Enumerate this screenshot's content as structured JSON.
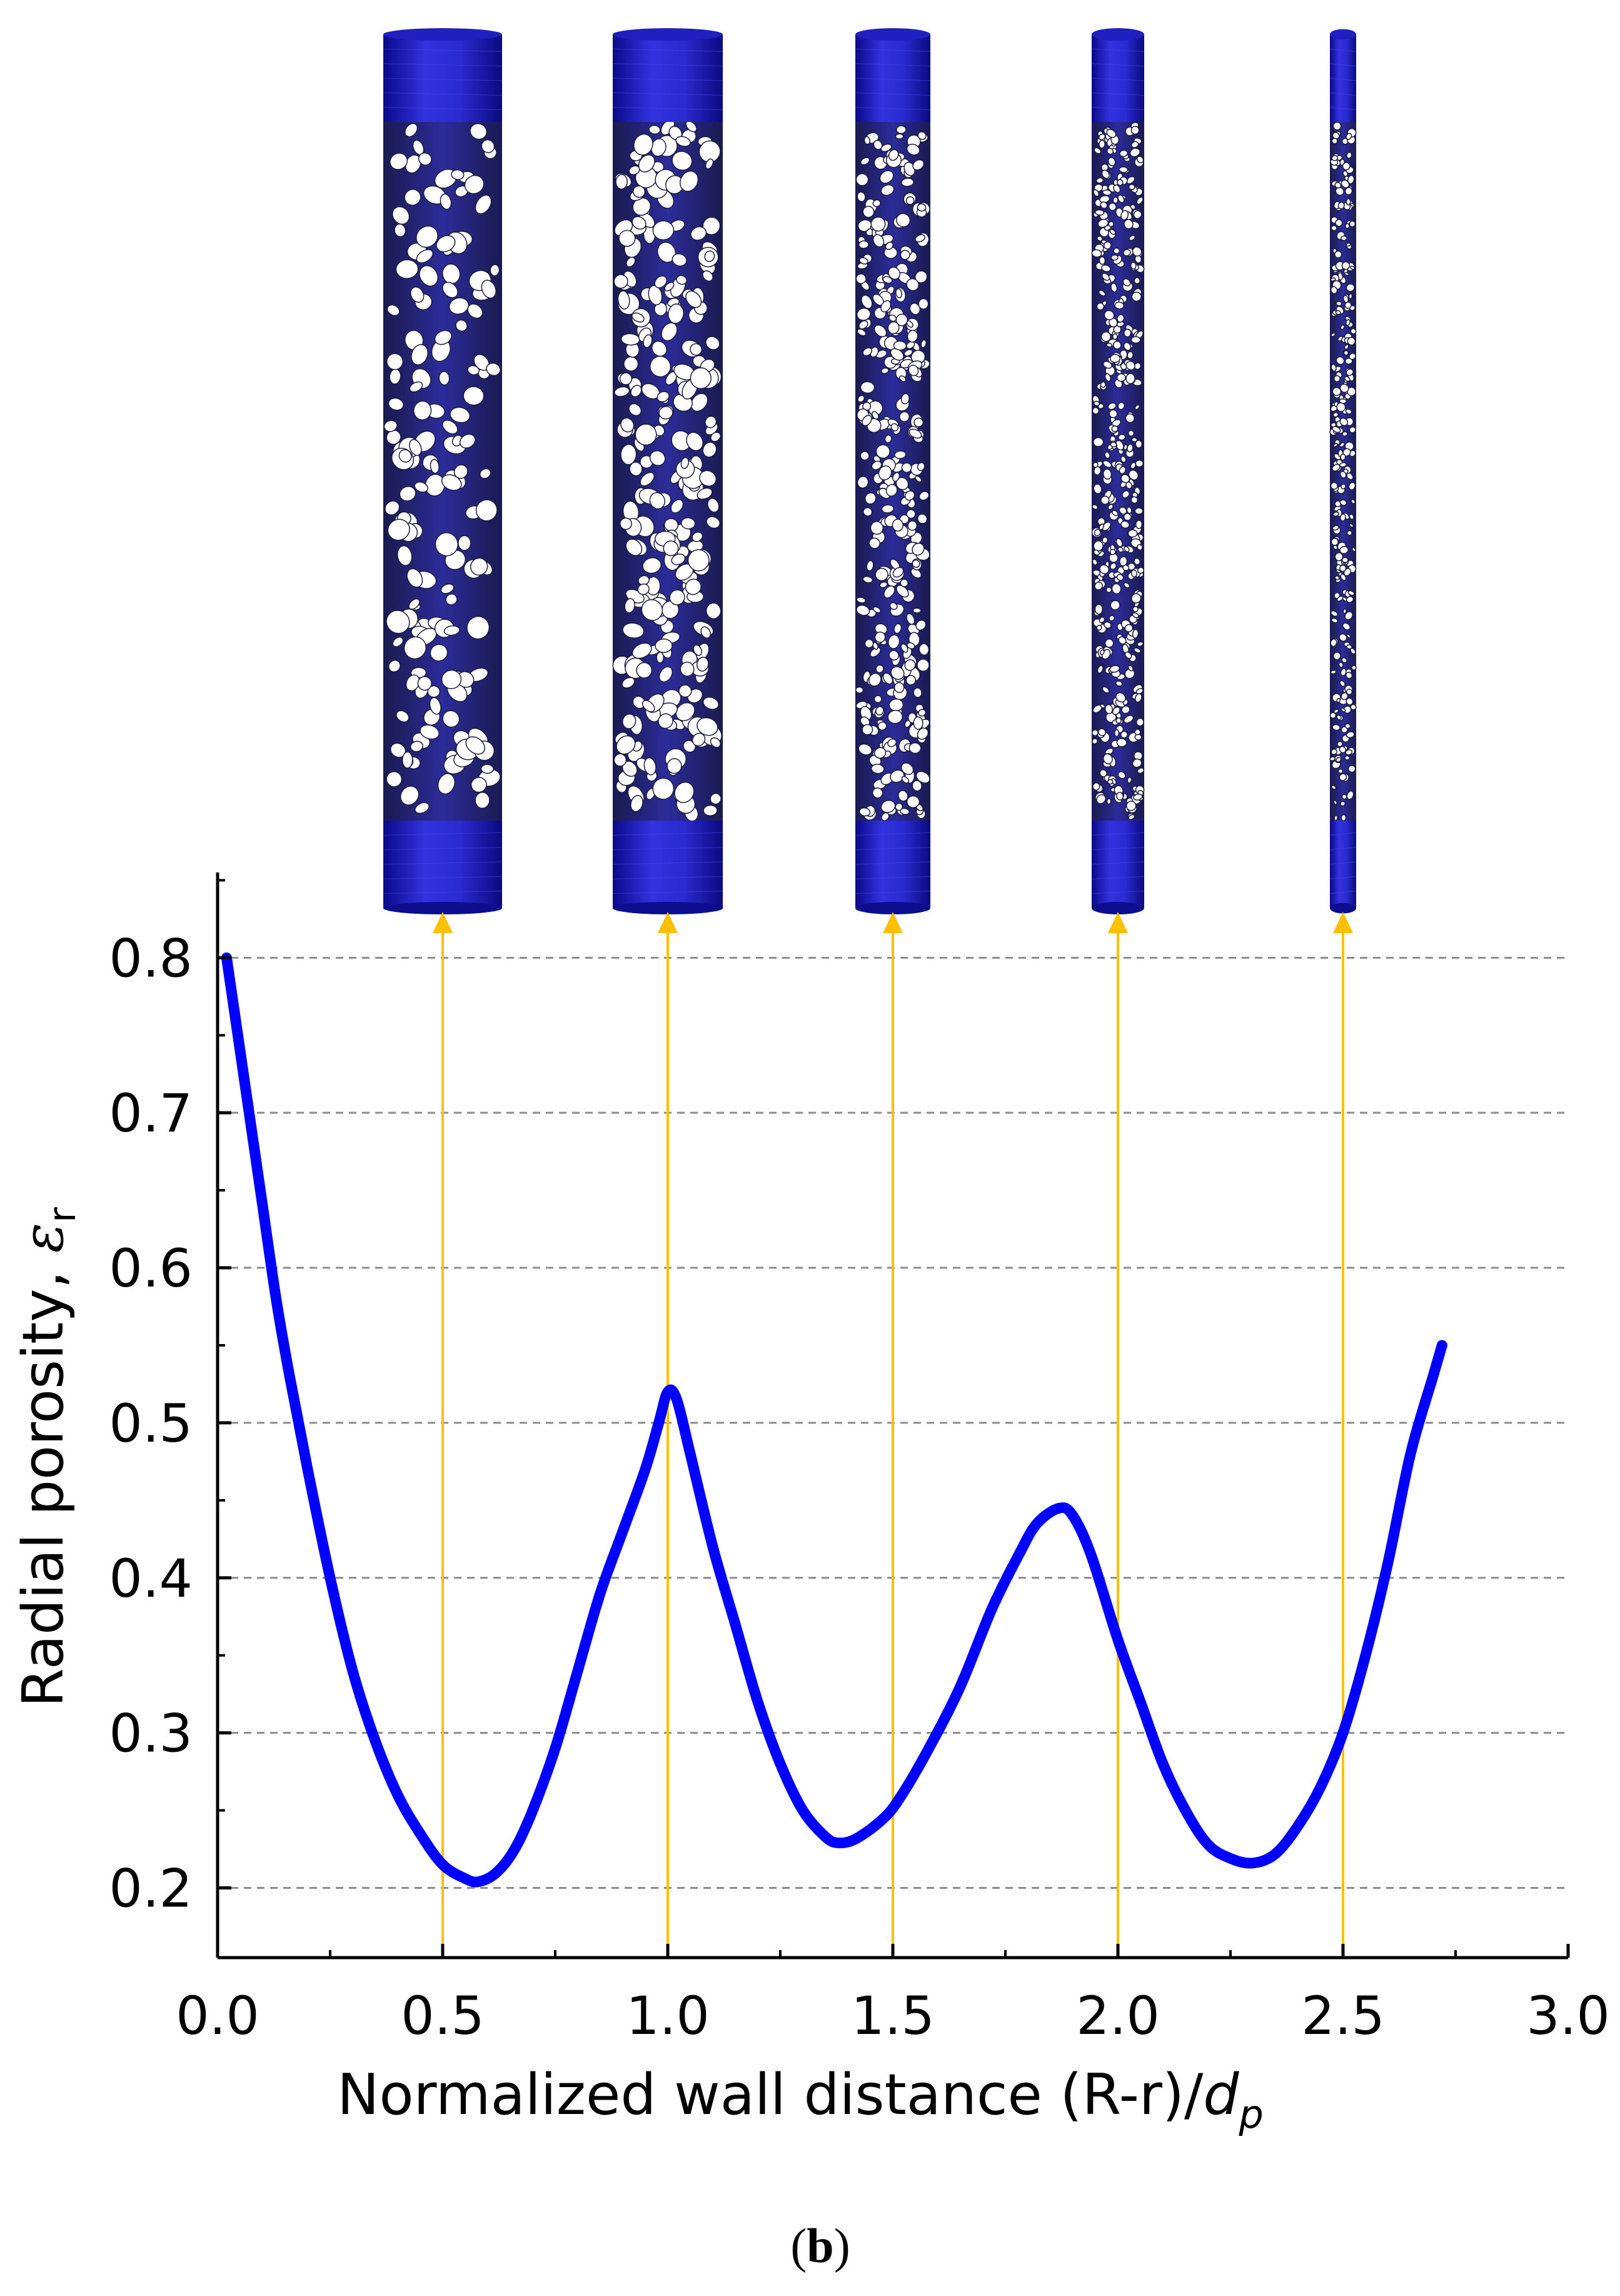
{
  "figure": {
    "panel_label": {
      "open": "(",
      "letter": "b",
      "close": ")"
    }
  },
  "chart_data": {
    "type": "line",
    "xlabel": {
      "text": "Normalized wall distance (R-r)/",
      "italic": "d",
      "sub": "p"
    },
    "ylabel": {
      "text": "Radial porosity, ",
      "symbol": "ε",
      "sub": "r"
    },
    "xlim": [
      0.0,
      3.0
    ],
    "ylim": [
      0.155,
      0.855
    ],
    "x_ticks": [
      "0.0",
      "0.5",
      "1.0",
      "1.5",
      "2.0",
      "2.5",
      "3.0"
    ],
    "y_ticks": [
      "0.2",
      "0.3",
      "0.4",
      "0.5",
      "0.6",
      "0.7",
      "0.8"
    ],
    "grid": {
      "horizontal_dashed": true,
      "vertical": false
    },
    "markers_x": [
      0.5,
      1.0,
      1.5,
      2.0,
      2.5
    ],
    "marker_color": "#FFC000",
    "series": [
      {
        "color": "#0000FF",
        "points": [
          [
            0.02,
            0.8
          ],
          [
            0.04,
            0.76
          ],
          [
            0.06,
            0.72
          ],
          [
            0.08,
            0.68
          ],
          [
            0.1,
            0.64
          ],
          [
            0.13,
            0.58
          ],
          [
            0.16,
            0.53
          ],
          [
            0.2,
            0.47
          ],
          [
            0.25,
            0.4
          ],
          [
            0.3,
            0.34
          ],
          [
            0.35,
            0.295
          ],
          [
            0.4,
            0.26
          ],
          [
            0.45,
            0.235
          ],
          [
            0.5,
            0.215
          ],
          [
            0.55,
            0.206
          ],
          [
            0.58,
            0.204
          ],
          [
            0.62,
            0.21
          ],
          [
            0.66,
            0.225
          ],
          [
            0.7,
            0.25
          ],
          [
            0.75,
            0.29
          ],
          [
            0.8,
            0.34
          ],
          [
            0.85,
            0.39
          ],
          [
            0.9,
            0.43
          ],
          [
            0.95,
            0.47
          ],
          [
            0.98,
            0.5
          ],
          [
            1.0,
            0.52
          ],
          [
            1.02,
            0.515
          ],
          [
            1.05,
            0.48
          ],
          [
            1.1,
            0.42
          ],
          [
            1.15,
            0.37
          ],
          [
            1.2,
            0.32
          ],
          [
            1.25,
            0.28
          ],
          [
            1.3,
            0.25
          ],
          [
            1.35,
            0.233
          ],
          [
            1.38,
            0.229
          ],
          [
            1.42,
            0.232
          ],
          [
            1.48,
            0.245
          ],
          [
            1.52,
            0.26
          ],
          [
            1.58,
            0.29
          ],
          [
            1.65,
            0.33
          ],
          [
            1.72,
            0.38
          ],
          [
            1.78,
            0.415
          ],
          [
            1.82,
            0.435
          ],
          [
            1.87,
            0.445
          ],
          [
            1.9,
            0.44
          ],
          [
            1.94,
            0.415
          ],
          [
            2.0,
            0.36
          ],
          [
            2.05,
            0.32
          ],
          [
            2.1,
            0.28
          ],
          [
            2.15,
            0.25
          ],
          [
            2.2,
            0.228
          ],
          [
            2.25,
            0.219
          ],
          [
            2.3,
            0.216
          ],
          [
            2.35,
            0.222
          ],
          [
            2.4,
            0.24
          ],
          [
            2.45,
            0.265
          ],
          [
            2.5,
            0.3
          ],
          [
            2.55,
            0.35
          ],
          [
            2.6,
            0.41
          ],
          [
            2.65,
            0.48
          ],
          [
            2.7,
            0.53
          ],
          [
            2.72,
            0.55
          ]
        ]
      }
    ]
  },
  "columns": [
    {
      "x": 0.5,
      "shell_color": "#1A1AC8",
      "mesh_color": "#2424A8",
      "pellet_density": 0.8
    },
    {
      "x": 1.0,
      "shell_color": "#1A1AC8",
      "mesh_color": "#2424A8",
      "pellet_density": 1.3
    },
    {
      "x": 1.5,
      "shell_color": "#1A1AC8",
      "mesh_color": "#2424A8",
      "pellet_density": 1.1
    },
    {
      "x": 2.0,
      "shell_color": "#1A1AC8",
      "mesh_color": "#2424A8",
      "pellet_density": 1.0
    },
    {
      "x": 2.5,
      "shell_color": "#1A1AC8",
      "mesh_color": "#2424A8",
      "pellet_density": 0.9
    }
  ]
}
